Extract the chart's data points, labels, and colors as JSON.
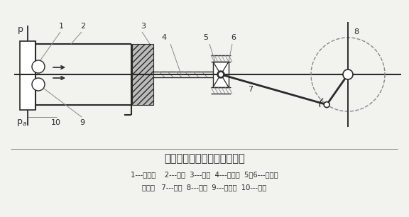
{
  "title": "活塞式空氣壓縮機工作原理圖",
  "caption_line1": "1---排氣閥    2---氣缸  3---活塞  4---活塞桿  5、6---十字頭",
  "caption_line2": "與滑道   7---連桿  8---曲柄  9---吸氣閥  10---彈簧",
  "bg_color": "#f2f2ee",
  "line_color": "#2a2a2a",
  "gray": "#888888",
  "light_gray": "#bbbbbb"
}
